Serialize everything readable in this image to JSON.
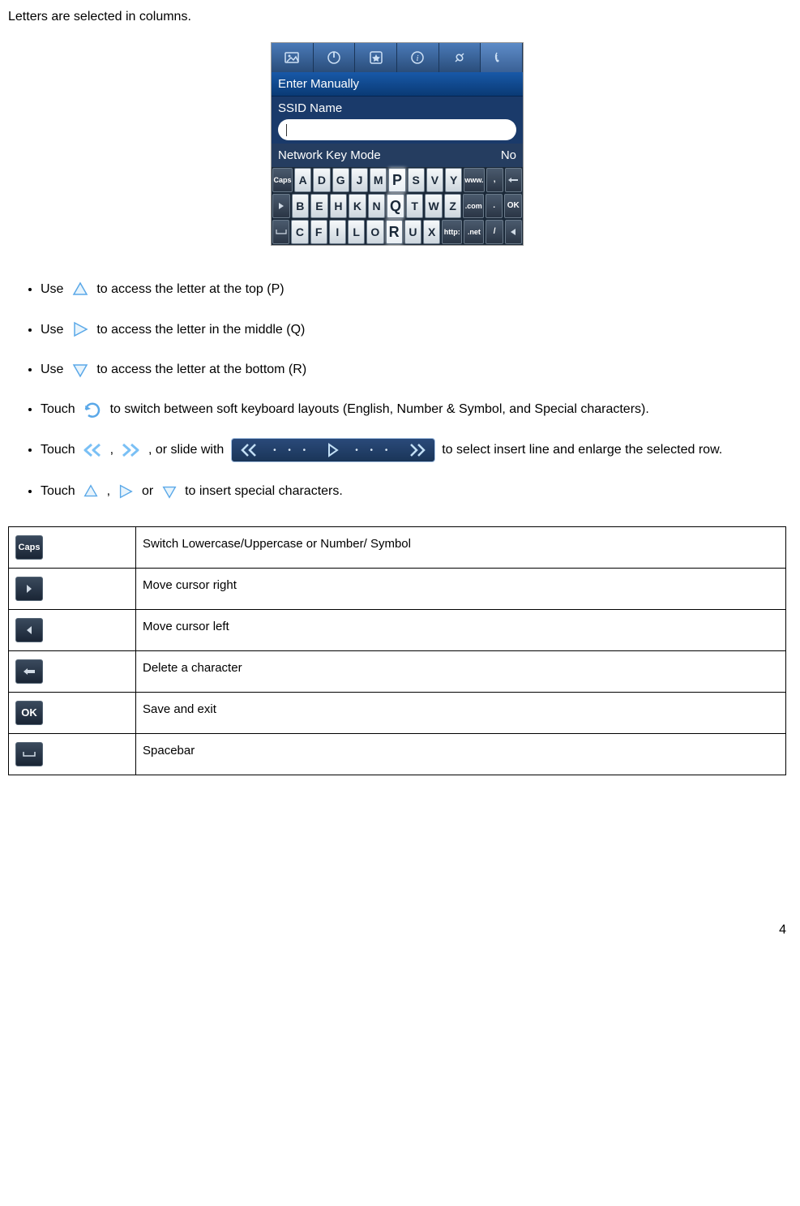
{
  "intro": "Letters are selected in columns.",
  "screenshot": {
    "header_text": "Enter Manually",
    "ssid_label": "SSID Name",
    "network_label": "Network Key Mode",
    "network_value": "No",
    "keyboard": {
      "row1": [
        "Caps",
        "A",
        "D",
        "G",
        "J",
        "M",
        "P",
        "S",
        "V",
        "Y",
        "www.",
        ",",
        "←"
      ],
      "row2": [
        "▶",
        "B",
        "E",
        "H",
        "K",
        "N",
        "Q",
        "T",
        "W",
        "Z",
        ".com",
        ".",
        "OK"
      ],
      "row3": [
        "␣",
        "C",
        "F",
        "I",
        "L",
        "O",
        "R",
        "U",
        "X",
        "http:",
        ".net",
        "/",
        "◀"
      ],
      "highlighted_col_index": 6
    }
  },
  "bullets": [
    {
      "pre": "Use ",
      "icon": "up-triangle",
      "post": " to access the letter at the top (P)"
    },
    {
      "pre": "Use ",
      "icon": "right-triangle",
      "post": "to access the letter in the middle (Q)"
    },
    {
      "pre": "Use ",
      "icon": "down-triangle",
      "post": " to access the letter at the bottom (R)"
    },
    {
      "pre": "Touch ",
      "icon": "rotate-arrow",
      "post": " to switch between soft keyboard layouts (English, Number & Symbol, and Special characters)."
    },
    {
      "pre": "Touch ",
      "multi": [
        "double-left",
        "double-right"
      ],
      "sep": ", ",
      "slide_pre": ", or slide with ",
      "slide": true,
      "post": "to select insert line and enlarge the selected row."
    },
    {
      "pre": "Touch ",
      "multi": [
        "up-triangle",
        "right-triangle"
      ],
      "sep": ", ",
      "or": " or ",
      "last": "down-triangle",
      "post": "to insert special characters."
    }
  ],
  "table": {
    "rows": [
      {
        "icon": "caps-key",
        "desc": "Switch Lowercase/Uppercase or Number/ Symbol"
      },
      {
        "icon": "right-arrow-key",
        "desc": "Move cursor right"
      },
      {
        "icon": "left-arrow-key",
        "desc": "Move cursor left"
      },
      {
        "icon": "back-arrow-key",
        "desc": "Delete a character"
      },
      {
        "icon": "ok-key",
        "desc": "Save and exit"
      },
      {
        "icon": "space-key",
        "desc": "Spacebar"
      }
    ]
  },
  "icon_colors": {
    "triangle_stroke": "#5aa8e8",
    "triangle_fill_light": "#dff0fc",
    "arrow_glow": "#7ac0f5"
  },
  "page_number": "4"
}
